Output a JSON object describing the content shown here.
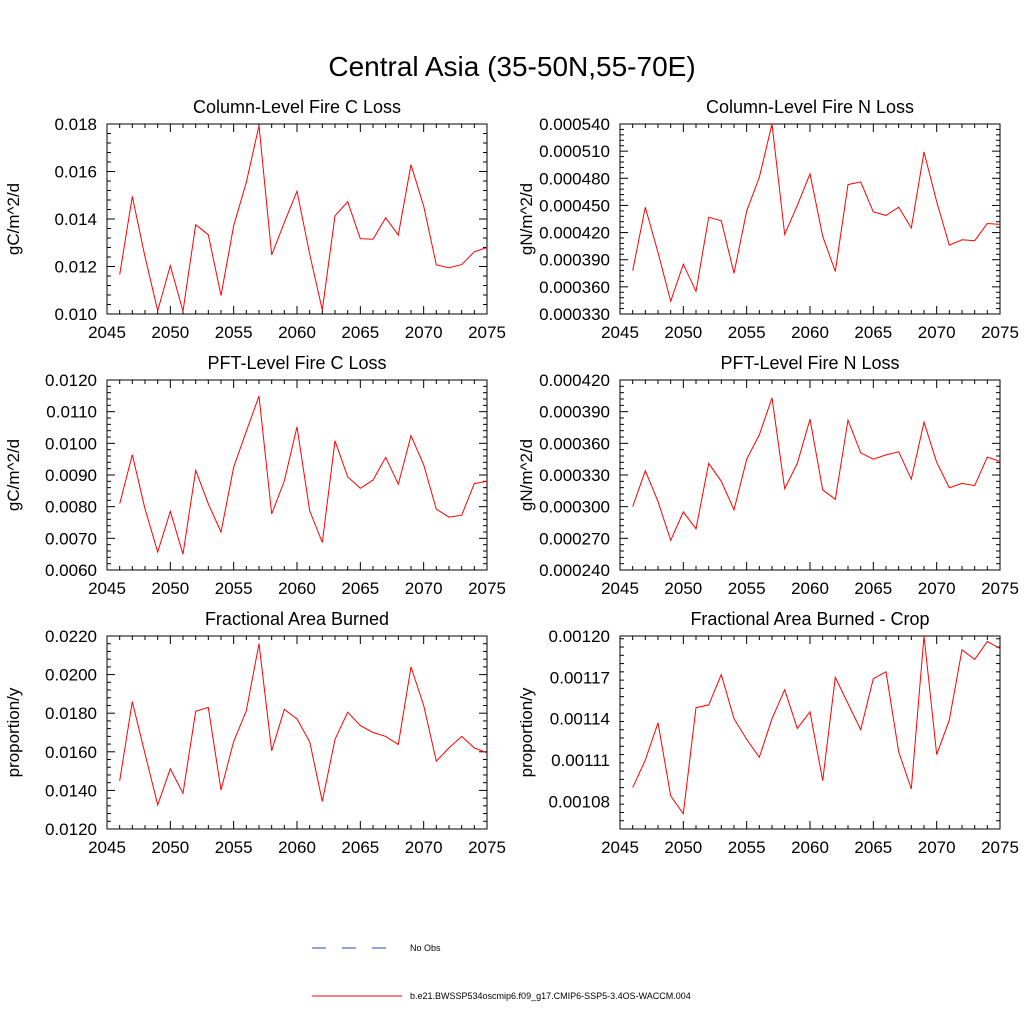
{
  "figure": {
    "title": "Central Asia (35-50N,55-70E)"
  },
  "chart_data": [
    {
      "type": "line",
      "title": "Column-Level Fire C Loss",
      "ylabel": "gC/m^2/d",
      "xlabel": "",
      "xlim": [
        2045,
        2075
      ],
      "ylim": [
        0.01,
        0.018
      ],
      "xticks": [
        "2045",
        "2050",
        "2055",
        "2060",
        "2065",
        "2070",
        "2075"
      ],
      "yticks": [
        "0.010",
        "0.012",
        "0.014",
        "0.016",
        "0.018"
      ],
      "x": [
        2046,
        2047,
        2048,
        2049,
        2050,
        2051,
        2052,
        2053,
        2054,
        2055,
        2056,
        2057,
        2058,
        2059,
        2060,
        2061,
        2062,
        2063,
        2064,
        2065,
        2066,
        2067,
        2068,
        2069,
        2070,
        2071,
        2072,
        2073,
        2074,
        2075
      ],
      "series": [
        {
          "name": "b.e21.BWSSP534oscmip6.f09_g17.CMIP6-SSP5-3.4OS-WACCM.004",
          "color": "#ff0000",
          "values": [
            0.01166,
            0.01495,
            0.01241,
            0.01014,
            0.01204,
            0.01012,
            0.01376,
            0.01334,
            0.01078,
            0.01372,
            0.01554,
            0.01793,
            0.01249,
            0.01385,
            0.01517,
            0.01252,
            0.01017,
            0.01413,
            0.01473,
            0.01317,
            0.01315,
            0.01405,
            0.01332,
            0.01629,
            0.01454,
            0.01207,
            0.01195,
            0.01208,
            0.01262,
            0.0128
          ]
        }
      ]
    },
    {
      "type": "line",
      "title": "Column-Level Fire N Loss",
      "ylabel": "gN/m^2/d",
      "xlabel": "",
      "xlim": [
        2045,
        2075
      ],
      "ylim": [
        0.00033,
        0.00054
      ],
      "xticks": [
        "2045",
        "2050",
        "2055",
        "2060",
        "2065",
        "2070",
        "2075"
      ],
      "yticks": [
        "0.000330",
        "0.000360",
        "0.000390",
        "0.000420",
        "0.000450",
        "0.000480",
        "0.000510",
        "0.000540"
      ],
      "x": [
        2046,
        2047,
        2048,
        2049,
        2050,
        2051,
        2052,
        2053,
        2054,
        2055,
        2056,
        2057,
        2058,
        2059,
        2060,
        2061,
        2062,
        2063,
        2064,
        2065,
        2066,
        2067,
        2068,
        2069,
        2070,
        2071,
        2072,
        2073,
        2074,
        2075
      ],
      "series": [
        {
          "name": "b.e21.BWSSP534oscmip6.f09_g17.CMIP6-SSP5-3.4OS-WACCM.004",
          "color": "#ff0000",
          "values": [
            0.000378,
            0.000448,
            0.000398,
            0.000344,
            0.000385,
            0.000355,
            0.000437,
            0.000433,
            0.000375,
            0.000444,
            0.000481,
            0.00054,
            0.000418,
            0.00045,
            0.000485,
            0.000416,
            0.000377,
            0.000473,
            0.000476,
            0.000443,
            0.000439,
            0.000448,
            0.000425,
            0.000509,
            0.000454,
            0.000406,
            0.000412,
            0.000411,
            0.00043,
            0.000429
          ]
        }
      ]
    },
    {
      "type": "line",
      "title": "PFT-Level Fire C Loss",
      "ylabel": "gC/m^2/d",
      "xlabel": "",
      "xlim": [
        2045,
        2075
      ],
      "ylim": [
        0.006,
        0.012
      ],
      "xticks": [
        "2045",
        "2050",
        "2055",
        "2060",
        "2065",
        "2070",
        "2075"
      ],
      "yticks": [
        "0.0060",
        "0.0070",
        "0.0080",
        "0.0090",
        "0.0100",
        "0.0110",
        "0.0120"
      ],
      "x": [
        2046,
        2047,
        2048,
        2049,
        2050,
        2051,
        2052,
        2053,
        2054,
        2055,
        2056,
        2057,
        2058,
        2059,
        2060,
        2061,
        2062,
        2063,
        2064,
        2065,
        2066,
        2067,
        2068,
        2069,
        2070,
        2071,
        2072,
        2073,
        2074,
        2075
      ],
      "series": [
        {
          "name": "b.e21.BWSSP534oscmip6.f09_g17.CMIP6-SSP5-3.4OS-WACCM.004",
          "color": "#ff0000",
          "values": [
            0.00809,
            0.00964,
            0.00793,
            0.00657,
            0.00785,
            0.0065,
            0.00915,
            0.00809,
            0.0072,
            0.00925,
            0.01038,
            0.01149,
            0.00777,
            0.00881,
            0.01052,
            0.00787,
            0.00687,
            0.01008,
            0.00894,
            0.00858,
            0.00884,
            0.00956,
            0.00871,
            0.01024,
            0.00932,
            0.00792,
            0.00767,
            0.00773,
            0.00873,
            0.0088
          ]
        }
      ]
    },
    {
      "type": "line",
      "title": "PFT-Level Fire N Loss",
      "ylabel": "gN/m^2/d",
      "xlabel": "",
      "xlim": [
        2045,
        2075
      ],
      "ylim": [
        0.00024,
        0.00042
      ],
      "xticks": [
        "2045",
        "2050",
        "2055",
        "2060",
        "2065",
        "2070",
        "2075"
      ],
      "yticks": [
        "0.000240",
        "0.000270",
        "0.000300",
        "0.000330",
        "0.000360",
        "0.000390",
        "0.000420"
      ],
      "x": [
        2046,
        2047,
        2048,
        2049,
        2050,
        2051,
        2052,
        2053,
        2054,
        2055,
        2056,
        2057,
        2058,
        2059,
        2060,
        2061,
        2062,
        2063,
        2064,
        2065,
        2066,
        2067,
        2068,
        2069,
        2070,
        2071,
        2072,
        2073,
        2074,
        2075
      ],
      "series": [
        {
          "name": "b.e21.BWSSP534oscmip6.f09_g17.CMIP6-SSP5-3.4OS-WACCM.004",
          "color": "#ff0000",
          "values": [
            0.0003,
            0.000334,
            0.000305,
            0.000268,
            0.000295,
            0.000279,
            0.000341,
            0.000324,
            0.000297,
            0.000345,
            0.000368,
            0.000403,
            0.000317,
            0.000341,
            0.000383,
            0.000316,
            0.000307,
            0.000382,
            0.000351,
            0.000345,
            0.000349,
            0.000352,
            0.000326,
            0.00038,
            0.000342,
            0.000318,
            0.000322,
            0.00032,
            0.000347,
            0.000343
          ]
        }
      ]
    },
    {
      "type": "line",
      "title": "Fractional Area Burned",
      "ylabel": "proportion/y",
      "xlabel": "",
      "xlim": [
        2045,
        2075
      ],
      "ylim": [
        0.012,
        0.022
      ],
      "xticks": [
        "2045",
        "2050",
        "2055",
        "2060",
        "2065",
        "2070",
        "2075"
      ],
      "yticks": [
        "0.0120",
        "0.0140",
        "0.0160",
        "0.0180",
        "0.0200",
        "0.0220"
      ],
      "x": [
        2046,
        2047,
        2048,
        2049,
        2050,
        2051,
        2052,
        2053,
        2054,
        2055,
        2056,
        2057,
        2058,
        2059,
        2060,
        2061,
        2062,
        2063,
        2064,
        2065,
        2066,
        2067,
        2068,
        2069,
        2070,
        2071,
        2072,
        2073,
        2074,
        2075
      ],
      "series": [
        {
          "name": "b.e21.BWSSP534oscmip6.f09_g17.CMIP6-SSP5-3.4OS-WACCM.004",
          "color": "#ff0000",
          "values": [
            0.0145,
            0.0186,
            0.0159,
            0.01325,
            0.01512,
            0.01385,
            0.0181,
            0.0183,
            0.01402,
            0.01654,
            0.01812,
            0.0216,
            0.01605,
            0.0182,
            0.0177,
            0.01652,
            0.01343,
            0.01664,
            0.01805,
            0.01736,
            0.017,
            0.0168,
            0.01638,
            0.0204,
            0.0184,
            0.01552,
            0.0162,
            0.0168,
            0.0162,
            0.01595
          ]
        }
      ]
    },
    {
      "type": "line",
      "title": "Fractional Area Burned - Crop",
      "ylabel": "proportion/y",
      "xlabel": "",
      "xlim": [
        2045,
        2075
      ],
      "ylim": [
        0.00106,
        0.0012
      ],
      "xticks": [
        "2045",
        "2050",
        "2055",
        "2060",
        "2065",
        "2070",
        "2075"
      ],
      "yticks": [
        "0.00108",
        "0.00111",
        "0.00114",
        "0.00117",
        "0.00120"
      ],
      "x": [
        2046,
        2047,
        2048,
        2049,
        2050,
        2051,
        2052,
        2053,
        2054,
        2055,
        2056,
        2057,
        2058,
        2059,
        2060,
        2061,
        2062,
        2063,
        2064,
        2065,
        2066,
        2067,
        2068,
        2069,
        2070,
        2071,
        2072,
        2073,
        2074,
        2075
      ],
      "series": [
        {
          "name": "b.e21.BWSSP534oscmip6.f09_g17.CMIP6-SSP5-3.4OS-WACCM.004",
          "color": "#ff0000",
          "values": [
            0.00109,
            0.00111,
            0.001137,
            0.001084,
            0.001071,
            0.001148,
            0.00115,
            0.001172,
            0.00114,
            0.001125,
            0.001112,
            0.00114,
            0.001161,
            0.001133,
            0.001145,
            0.001095,
            0.00117,
            0.001151,
            0.001132,
            0.001169,
            0.001174,
            0.001116,
            0.001089,
            0.0012,
            0.001114,
            0.001139,
            0.00119,
            0.001183,
            0.001196,
            0.001191
          ]
        }
      ]
    }
  ],
  "legend": {
    "placement": "bottom-center",
    "entries": [
      {
        "label": "No Obs",
        "color": "#3344aa",
        "style": "dashed"
      },
      {
        "label": "b.e21.BWSSP534oscmip6.f09_g17.CMIP6-SSP5-3.4OS-WACCM.004",
        "color": "#ff0000",
        "style": "solid"
      }
    ]
  }
}
